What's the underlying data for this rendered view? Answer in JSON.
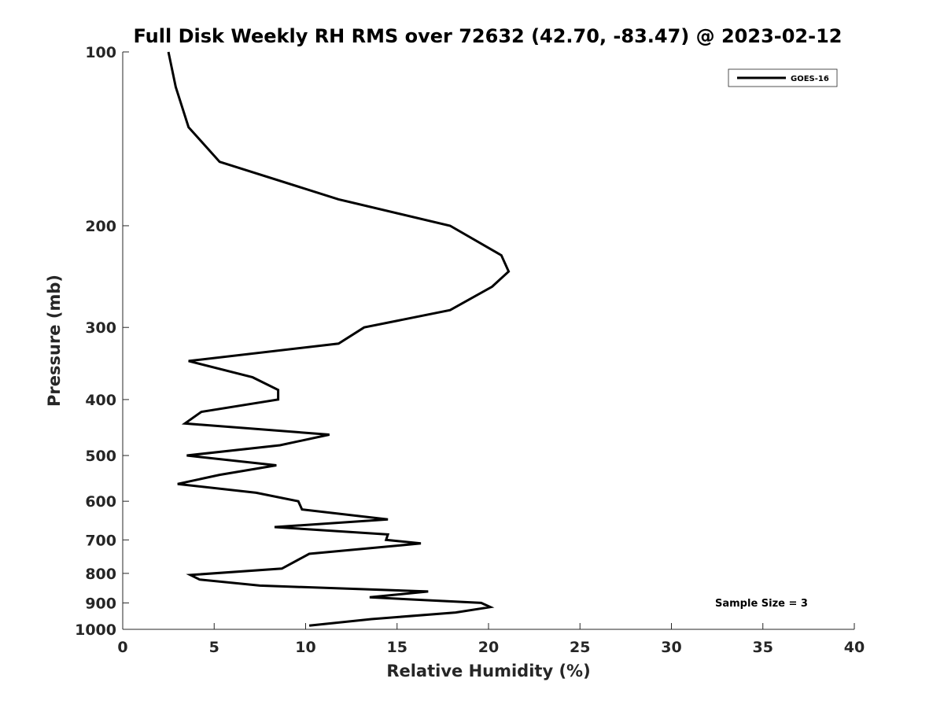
{
  "chart_data": {
    "type": "line",
    "title": "Full Disk Weekly RH RMS over 72632 (42.70, -83.47) @ 2023-02-12",
    "xlabel": "Relative Humidity (%)",
    "ylabel": "Pressure (mb)",
    "xlim": [
      0,
      40
    ],
    "ylim": [
      1000,
      100
    ],
    "yscale": "log",
    "y_reversed": true,
    "x_ticks": [
      0,
      5,
      10,
      15,
      20,
      25,
      30,
      35,
      40
    ],
    "y_ticks": [
      100,
      200,
      300,
      400,
      500,
      600,
      700,
      800,
      900,
      1000
    ],
    "grid": false,
    "legend_position": "top-right",
    "series": [
      {
        "name": "GOES-16",
        "color": "#000000",
        "points": [
          [
            2.5,
            100
          ],
          [
            2.9,
            115
          ],
          [
            3.6,
            135
          ],
          [
            5.3,
            155
          ],
          [
            11.8,
            180
          ],
          [
            17.9,
            200
          ],
          [
            20.7,
            225
          ],
          [
            21.1,
            240
          ],
          [
            20.2,
            255
          ],
          [
            17.9,
            280
          ],
          [
            13.2,
            300
          ],
          [
            11.8,
            320
          ],
          [
            3.6,
            343
          ],
          [
            7.1,
            366
          ],
          [
            8.5,
            385
          ],
          [
            8.5,
            400
          ],
          [
            4.3,
            420
          ],
          [
            3.4,
            440
          ],
          [
            11.3,
            460
          ],
          [
            8.6,
            480
          ],
          [
            3.5,
            500
          ],
          [
            8.4,
            520
          ],
          [
            5.3,
            540
          ],
          [
            3.0,
            560
          ],
          [
            7.3,
            580
          ],
          [
            9.6,
            600
          ],
          [
            9.8,
            620
          ],
          [
            14.5,
            645
          ],
          [
            8.3,
            665
          ],
          [
            14.5,
            685
          ],
          [
            14.4,
            700
          ],
          [
            16.3,
            710
          ],
          [
            10.2,
            740
          ],
          [
            8.7,
            785
          ],
          [
            3.7,
            805
          ],
          [
            4.2,
            820
          ],
          [
            7.5,
            840
          ],
          [
            16.7,
            860
          ],
          [
            13.5,
            880
          ],
          [
            19.6,
            900
          ],
          [
            20.1,
            915
          ],
          [
            18.2,
            935
          ],
          [
            13.6,
            960
          ],
          [
            10.2,
            985
          ]
        ]
      }
    ],
    "annotations": [
      "Sample Size = 3"
    ]
  }
}
